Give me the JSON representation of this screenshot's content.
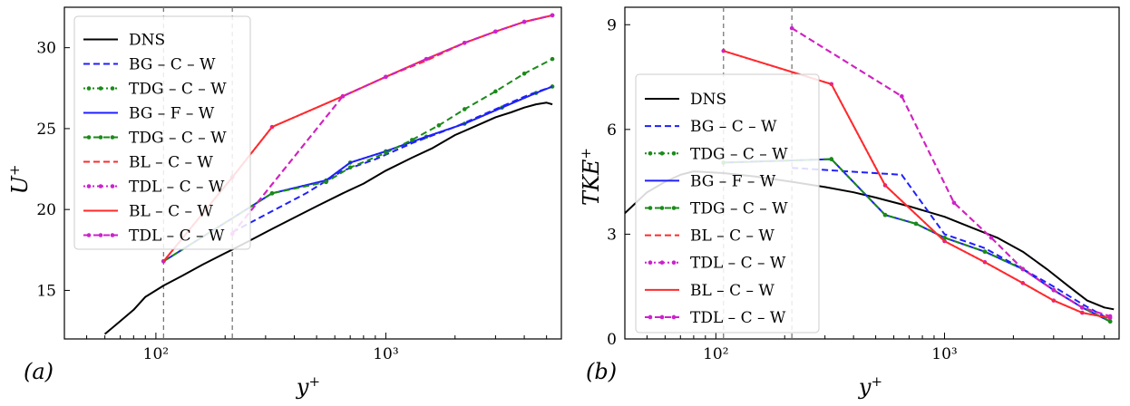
{
  "series_styles": [
    {
      "name": "DNS",
      "label": "DNS",
      "color": "#000000",
      "dash": "",
      "marker": false,
      "width": 2
    },
    {
      "name": "BG-C-W",
      "label": "BG – C – W",
      "color": "#1f1fff",
      "dash": "7,4",
      "marker": false,
      "width": 2
    },
    {
      "name": "TDG-C-W-dot",
      "label": "TDG – C – W",
      "color": "#1a8a1a",
      "dash": "2,3",
      "marker": true,
      "width": 2
    },
    {
      "name": "BG-F-W",
      "label": "BG – F – W",
      "color": "#1f1fff",
      "dash": "",
      "marker": false,
      "width": 2
    },
    {
      "name": "TDG-C-W-dash",
      "label": "TDG – C – W",
      "color": "#1a8a1a",
      "dash": "7,4",
      "marker": true,
      "width": 2
    },
    {
      "name": "BL-C-W-dash",
      "label": "BL – C – W",
      "color": "#ff2a2a",
      "dash": "7,4",
      "marker": false,
      "width": 2
    },
    {
      "name": "TDL-C-W-dot",
      "label": "TDL – C – W",
      "color": "#cc22cc",
      "dash": "2,3",
      "marker": true,
      "width": 2
    },
    {
      "name": "BL-C-W-solid",
      "label": "BL – C – W",
      "color": "#ff2a2a",
      "dash": "",
      "marker": false,
      "width": 2
    },
    {
      "name": "TDL-C-W-dash",
      "label": "TDL – C – W",
      "color": "#cc22cc",
      "dash": "7,4",
      "marker": true,
      "width": 2
    }
  ],
  "chart_data": [
    {
      "type": "line",
      "panel_label": "(a)",
      "xlabel": "y+",
      "ylabel": "U+",
      "xscale": "log",
      "xlim": [
        40,
        5800
      ],
      "ylim": [
        12,
        32.5
      ],
      "xticks": [
        100,
        1000
      ],
      "xtick_labels": [
        "10²",
        "10³"
      ],
      "yticks": [
        15,
        20,
        25,
        30
      ],
      "ytick_labels": [
        "15",
        "20",
        "25",
        "30"
      ],
      "vlines": [
        108,
        215
      ],
      "legend_loc": "upper-left",
      "series": [
        {
          "style": "DNS",
          "x": [
            60,
            70,
            80,
            90,
            108,
            130,
            160,
            200,
            250,
            320,
            400,
            500,
            650,
            800,
            1000,
            1300,
            1600,
            2000,
            2500,
            3000,
            3500,
            4000,
            4500,
            5000,
            5300
          ],
          "y": [
            12.3,
            13.1,
            13.8,
            14.6,
            15.3,
            15.9,
            16.6,
            17.3,
            18.0,
            18.8,
            19.5,
            20.2,
            21.0,
            21.6,
            22.4,
            23.2,
            23.8,
            24.6,
            25.2,
            25.7,
            26.0,
            26.3,
            26.5,
            26.6,
            26.5
          ]
        },
        {
          "style": "BG-C-W",
          "x": [
            215,
            320,
            450,
            650,
            900,
            1300,
            2000,
            3000,
            4200,
            5300
          ],
          "y": [
            18.6,
            19.9,
            21.0,
            22.4,
            23.1,
            24.1,
            25.1,
            26.2,
            27.1,
            27.6
          ]
        },
        {
          "style": "TDG-C-W-dot",
          "x": [
            108,
            320,
            550,
            700,
            1000,
            1500,
            2200,
            3200,
            4500,
            5300
          ],
          "y": [
            16.8,
            21.0,
            21.8,
            22.9,
            23.6,
            24.5,
            25.3,
            26.3,
            27.2,
            27.6
          ]
        },
        {
          "style": "BG-F-W",
          "x": [
            108,
            320,
            550,
            700,
            1000,
            1500,
            2200,
            3200,
            4500,
            5300
          ],
          "y": [
            16.8,
            21.0,
            21.8,
            22.9,
            23.6,
            24.5,
            25.3,
            26.3,
            27.2,
            27.6
          ]
        },
        {
          "style": "TDG-C-W-dash",
          "x": [
            108,
            320,
            550,
            700,
            1000,
            1300,
            1700,
            2200,
            3000,
            4000,
            5300
          ],
          "y": [
            16.8,
            21.0,
            21.7,
            22.6,
            23.5,
            24.3,
            25.2,
            26.2,
            27.3,
            28.4,
            29.3
          ]
        },
        {
          "style": "BL-C-W-dash",
          "x": [
            215,
            650,
            1000,
            1500,
            2200,
            3000,
            4000,
            5300
          ],
          "y": [
            18.5,
            27.0,
            28.2,
            29.2,
            30.3,
            31.0,
            31.6,
            32.0
          ]
        },
        {
          "style": "TDL-C-W-dot",
          "x": [
            108,
            215,
            320,
            650,
            1000,
            1500,
            2200,
            3000,
            4000,
            5300
          ],
          "y": [
            16.8,
            22.0,
            25.1,
            27.0,
            28.2,
            29.3,
            30.3,
            31.0,
            31.6,
            32.0
          ]
        },
        {
          "style": "BL-C-W-solid",
          "x": [
            108,
            215,
            320,
            650,
            1000,
            1500,
            2200,
            3000,
            4000,
            5300
          ],
          "y": [
            16.8,
            22.0,
            25.1,
            27.0,
            28.2,
            29.3,
            30.3,
            31.0,
            31.6,
            32.0
          ]
        },
        {
          "style": "TDL-C-W-dash",
          "x": [
            215,
            650,
            1000,
            1500,
            2200,
            3000,
            4000,
            5300
          ],
          "y": [
            18.5,
            27.0,
            28.2,
            29.3,
            30.3,
            31.0,
            31.6,
            32.0
          ]
        }
      ]
    },
    {
      "type": "line",
      "panel_label": "(b)",
      "xlabel": "y+",
      "ylabel": "TKE+",
      "xscale": "log",
      "xlim": [
        40,
        5800
      ],
      "ylim": [
        0,
        9.5
      ],
      "xticks": [
        100,
        1000
      ],
      "xtick_labels": [
        "10²",
        "10³"
      ],
      "yticks": [
        0,
        3,
        6,
        9
      ],
      "ytick_labels": [
        "0",
        "3",
        "6",
        "9"
      ],
      "vlines": [
        108,
        215
      ],
      "legend_loc": "center-left",
      "series": [
        {
          "style": "DNS",
          "x": [
            40,
            50,
            60,
            70,
            80,
            108,
            150,
            215,
            300,
            400,
            500,
            700,
            1000,
            1300,
            1700,
            2200,
            2800,
            3500,
            4200,
            5000,
            5500
          ],
          "y": [
            3.6,
            4.2,
            4.5,
            4.7,
            4.8,
            4.75,
            4.65,
            4.5,
            4.35,
            4.2,
            4.05,
            3.8,
            3.5,
            3.2,
            2.9,
            2.5,
            2.0,
            1.5,
            1.1,
            0.9,
            0.85
          ]
        },
        {
          "style": "BG-C-W",
          "x": [
            215,
            650,
            1000,
            1500,
            2200,
            3000,
            4000,
            5300
          ],
          "y": [
            4.9,
            4.7,
            3.0,
            2.6,
            2.0,
            1.5,
            1.0,
            0.55
          ]
        },
        {
          "style": "TDG-C-W-dot",
          "x": [
            108,
            320,
            550,
            750,
            1000,
            1500,
            2200,
            3000,
            4000,
            5300
          ],
          "y": [
            5.05,
            5.15,
            3.55,
            3.3,
            2.9,
            2.5,
            2.0,
            1.4,
            0.9,
            0.5
          ]
        },
        {
          "style": "BG-F-W",
          "x": [
            108,
            320,
            550,
            750,
            1000,
            1500,
            2200,
            3000,
            4000,
            5300
          ],
          "y": [
            5.05,
            5.15,
            3.55,
            3.3,
            2.9,
            2.5,
            2.0,
            1.4,
            0.9,
            0.5
          ]
        },
        {
          "style": "TDG-C-W-dash",
          "x": [
            108,
            320,
            550,
            750,
            1000,
            1500,
            2200,
            3000,
            4000,
            5300
          ],
          "y": [
            5.05,
            5.15,
            3.55,
            3.3,
            2.9,
            2.5,
            2.0,
            1.4,
            0.9,
            0.5
          ]
        },
        {
          "style": "BL-C-W-dash",
          "x": [
            215,
            650,
            1100,
            1600,
            2200,
            3000,
            4000,
            5300
          ],
          "y": [
            8.9,
            6.95,
            3.9,
            2.9,
            2.0,
            1.4,
            0.9,
            0.65
          ]
        },
        {
          "style": "TDL-C-W-dot",
          "x": [
            108,
            320,
            550,
            1000,
            1500,
            2200,
            3000,
            4000,
            5300
          ],
          "y": [
            8.25,
            7.3,
            4.4,
            2.8,
            2.2,
            1.6,
            1.1,
            0.75,
            0.6
          ]
        },
        {
          "style": "BL-C-W-solid",
          "x": [
            108,
            320,
            550,
            1000,
            1500,
            2200,
            3000,
            4000,
            5300
          ],
          "y": [
            8.25,
            7.3,
            4.4,
            2.8,
            2.2,
            1.6,
            1.1,
            0.75,
            0.6
          ]
        },
        {
          "style": "TDL-C-W-dash",
          "x": [
            215,
            650,
            1100,
            1600,
            2200,
            3000,
            4000,
            5300
          ],
          "y": [
            8.9,
            6.95,
            3.9,
            2.9,
            2.0,
            1.4,
            0.9,
            0.65
          ]
        }
      ]
    }
  ]
}
